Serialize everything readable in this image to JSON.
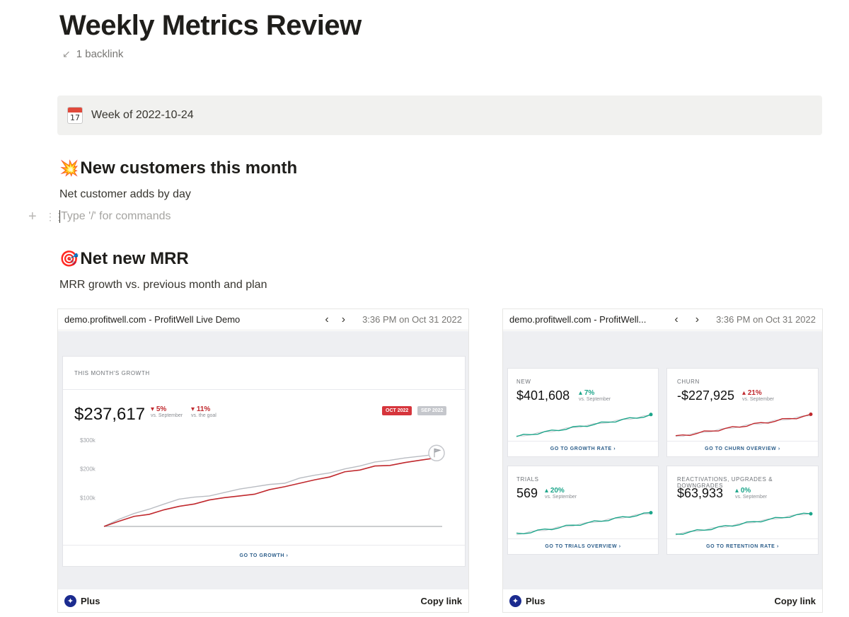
{
  "page": {
    "title": "Weekly Metrics Review",
    "backlink": "1 backlink"
  },
  "callout": {
    "icon_day": "17",
    "text": "Week of 2022-10-24"
  },
  "section1": {
    "emoji": "💥",
    "heading": "New customers this month",
    "description": "Net customer adds by day",
    "placeholder": "Type '/' for commands"
  },
  "section2": {
    "emoji": "🎯",
    "heading": "Net new MRR",
    "description": "MRR growth vs. previous month and plan"
  },
  "embed_left": {
    "source": "demo.profitwell.com - ProfitWell Live Demo",
    "prev": "‹",
    "next": "›",
    "time": "3:36 PM on Oct 31 2022",
    "plus_label": "Plus",
    "copy_label": "Copy link",
    "card": {
      "label": "THIS MONTH'S GROWTH",
      "value": "$237,617",
      "delta1": "5%",
      "delta1_sub": "vs. September",
      "delta2": "11%",
      "delta2_sub": "vs. the goal",
      "chip1": "OCT 2022",
      "chip2": "SEP 2022",
      "goto": "GO TO GROWTH ›"
    }
  },
  "embed_right": {
    "source": "demo.profitwell.com - ProfitWell...",
    "prev": "‹",
    "next": "›",
    "time": "3:36 PM on Oct 31 2022",
    "plus_label": "Plus",
    "copy_label": "Copy link",
    "cards": [
      {
        "label": "NEW",
        "value": "$401,608",
        "delta": "7%",
        "delta_sub": "vs. September",
        "goto": "GO TO GROWTH RATE ›"
      },
      {
        "label": "CHURN",
        "value": "-$227,925",
        "delta": "21%",
        "delta_sub": "vs. September",
        "goto": "GO TO CHURN OVERVIEW ›"
      },
      {
        "label": "TRIALS",
        "value": "569",
        "delta": "20%",
        "delta_sub": "vs. September",
        "goto": "GO TO TRIALS OVERVIEW ›"
      },
      {
        "label": "REACTIVATIONS, UPGRADES & DOWNGRADES",
        "value": "$63,933",
        "delta": "0%",
        "delta_sub": "vs. September",
        "goto": "GO TO RETENTION RATE ›"
      }
    ]
  },
  "colors": {
    "red": "#c0282d",
    "teal": "#1ca58a",
    "gray_line": "#b9bcc2",
    "callout_bg": "#f1f1ef"
  },
  "chart_data": {
    "type": "line",
    "ylim": [
      0,
      300000
    ],
    "yticks": [
      "$300k",
      "$200k",
      "$100k"
    ],
    "series": [
      {
        "name": "OCT 2022",
        "values": [
          0,
          18000,
          35000,
          42000,
          58000,
          70000,
          78000,
          92000,
          100000,
          106000,
          112000,
          128000,
          138000,
          150000,
          162000,
          172000,
          190000,
          196000,
          210000,
          212000,
          222000,
          230000,
          237617
        ]
      },
      {
        "name": "SEP 2022",
        "values": [
          0,
          25000,
          45000,
          60000,
          78000,
          95000,
          102000,
          106000,
          118000,
          130000,
          138000,
          146000,
          150000,
          168000,
          178000,
          186000,
          200000,
          210000,
          224000,
          230000,
          238000,
          244000,
          250000
        ]
      }
    ]
  }
}
